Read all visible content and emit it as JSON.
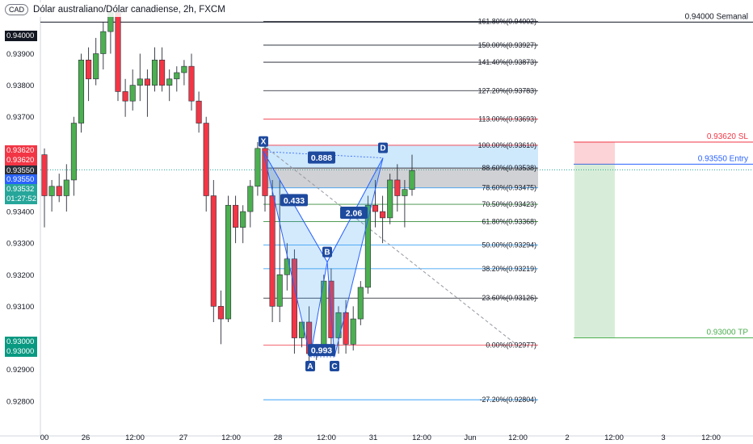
{
  "header": {
    "currency_badge": "CAD",
    "title": "Dólar australiano/Dólar canadiense, 2h, FXCM"
  },
  "price_axis": {
    "ticks": [
      "0.93900",
      "0.93800",
      "0.93700",
      "0.93400",
      "0.93300",
      "0.93200",
      "0.93100",
      "0.92900",
      "0.92800"
    ],
    "tags": [
      {
        "text": "0.94000",
        "bg": "#131722"
      },
      {
        "text": "0.93620",
        "bg": "#f23645"
      },
      {
        "text": "0.93620",
        "bg": "#f23645"
      },
      {
        "text": "0.93550",
        "bg": "#2a2e39"
      },
      {
        "text": "0.93550",
        "bg": "#2962ff"
      },
      {
        "text": "0.93532",
        "bg": "#26a69a"
      },
      {
        "text": "01:27:52",
        "bg": "#26a69a"
      },
      {
        "text": "0.93000",
        "bg": "#089981"
      },
      {
        "text": "0.93000",
        "bg": "#089981"
      }
    ]
  },
  "time_axis": {
    "labels": [
      "00",
      "26",
      "12:00",
      "27",
      "12:00",
      "28",
      "12:00",
      "31",
      "12:00",
      "Jun",
      "12:00",
      "2",
      "12:00",
      "3",
      "12:00"
    ]
  },
  "fib_levels": [
    {
      "label": "161.80%(0.94002)",
      "price": 0.94002,
      "color": "#131722"
    },
    {
      "label": "150.00%(0.93927)",
      "price": 0.93927,
      "color": "#131722"
    },
    {
      "label": "141.40%(0.93873)",
      "price": 0.93873,
      "color": "#131722"
    },
    {
      "label": "127.20%(0.93783)",
      "price": 0.93783,
      "color": "#131722"
    },
    {
      "label": "113.00%(0.93693)",
      "price": 0.93693,
      "color": "#f23645"
    },
    {
      "label": "100.00%(0.93610)",
      "price": 0.9361,
      "color": "#f23645"
    },
    {
      "label": "88.60%(0.93538)",
      "price": 0.93538,
      "color": "#131722"
    },
    {
      "label": "78.60%(0.93475)",
      "price": 0.93475,
      "color": "#2196f3"
    },
    {
      "label": "70.50%(0.93423)",
      "price": 0.93423,
      "color": "#388e3c"
    },
    {
      "label": "61.80%(0.93368)",
      "price": 0.93368,
      "color": "#388e3c"
    },
    {
      "label": "50.00%(0.93294)",
      "price": 0.93294,
      "color": "#2196f3"
    },
    {
      "label": "38.20%(0.93219)",
      "price": 0.93219,
      "color": "#2196f3"
    },
    {
      "label": "23.60%(0.93126)",
      "price": 0.93126,
      "color": "#131722"
    },
    {
      "label": "0.00%(0.92977)",
      "price": 0.92977,
      "color": "#f23645"
    },
    {
      "label": "-27.20%(0.92804)",
      "price": 0.92804,
      "color": "#2196f3"
    }
  ],
  "horizontal_labels": [
    {
      "text": "0.94000 Semanal",
      "price": 0.94,
      "color": "#131722"
    },
    {
      "text": "0.93620 SL",
      "price": 0.9362,
      "color": "#f23645"
    },
    {
      "text": "0.93550 Entry",
      "price": 0.9355,
      "color": "#2962ff"
    },
    {
      "text": "0.93000 TP",
      "price": 0.93,
      "color": "#4caf50"
    }
  ],
  "pattern": {
    "points": [
      {
        "name": "X",
        "price": 0.9359
      },
      {
        "name": "A",
        "price": 0.9294
      },
      {
        "name": "B",
        "price": 0.9324
      },
      {
        "name": "C",
        "price": 0.9294
      },
      {
        "name": "D",
        "price": 0.9357
      }
    ],
    "ratios": [
      "0.888",
      "0.433",
      "2.06",
      "0.993"
    ]
  },
  "chart_data": {
    "type": "candlestick",
    "title": "Dólar australiano/Dólar canadiense, 2h, FXCM",
    "ylim": [
      0.92715,
      0.9407
    ],
    "candles": [
      [
        0.9358,
        0.936,
        0.9335,
        0.9345
      ],
      [
        0.9345,
        0.935,
        0.934,
        0.9348
      ],
      [
        0.9348,
        0.9352,
        0.9343,
        0.9345
      ],
      [
        0.9345,
        0.9355,
        0.934,
        0.935
      ],
      [
        0.935,
        0.937,
        0.9345,
        0.9368
      ],
      [
        0.9368,
        0.939,
        0.9365,
        0.9388
      ],
      [
        0.9388,
        0.9392,
        0.9375,
        0.9382
      ],
      [
        0.9382,
        0.9395,
        0.938,
        0.939
      ],
      [
        0.939,
        0.94,
        0.9385,
        0.9397
      ],
      [
        0.9397,
        0.9405,
        0.939,
        0.9403
      ],
      [
        0.9403,
        0.9405,
        0.9375,
        0.9378
      ],
      [
        0.9378,
        0.9382,
        0.937,
        0.9375
      ],
      [
        0.9375,
        0.9385,
        0.9372,
        0.938
      ],
      [
        0.938,
        0.939,
        0.9375,
        0.9382
      ],
      [
        0.9382,
        0.9385,
        0.937,
        0.938
      ],
      [
        0.938,
        0.9392,
        0.9378,
        0.9388
      ],
      [
        0.9388,
        0.9392,
        0.9378,
        0.938
      ],
      [
        0.938,
        0.9385,
        0.9375,
        0.9382
      ],
      [
        0.9382,
        0.9386,
        0.9378,
        0.9384
      ],
      [
        0.9384,
        0.9388,
        0.938,
        0.9386
      ],
      [
        0.9386,
        0.939,
        0.9372,
        0.9375
      ],
      [
        0.9375,
        0.9378,
        0.9365,
        0.9368
      ],
      [
        0.9368,
        0.937,
        0.934,
        0.9345
      ],
      [
        0.9345,
        0.935,
        0.9305,
        0.931
      ],
      [
        0.931,
        0.9315,
        0.9298,
        0.9306
      ],
      [
        0.9306,
        0.9345,
        0.9305,
        0.9342
      ],
      [
        0.9342,
        0.9345,
        0.933,
        0.9335
      ],
      [
        0.9335,
        0.9342,
        0.933,
        0.934
      ],
      [
        0.934,
        0.935,
        0.9335,
        0.9348
      ],
      [
        0.9348,
        0.9362,
        0.9345,
        0.936
      ],
      [
        0.936,
        0.9362,
        0.934,
        0.9345
      ],
      [
        0.9345,
        0.935,
        0.9305,
        0.931
      ],
      [
        0.931,
        0.935,
        0.9305,
        0.932
      ],
      [
        0.932,
        0.933,
        0.9315,
        0.9325
      ],
      [
        0.9325,
        0.9328,
        0.9295,
        0.93
      ],
      [
        0.93,
        0.9305,
        0.9297,
        0.9305
      ],
      [
        0.9305,
        0.931,
        0.929,
        0.9295
      ],
      [
        0.9295,
        0.9298,
        0.9293,
        0.9297
      ],
      [
        0.9297,
        0.932,
        0.9295,
        0.9318
      ],
      [
        0.9318,
        0.9322,
        0.9298,
        0.93
      ],
      [
        0.93,
        0.931,
        0.9295,
        0.9308
      ],
      [
        0.9308,
        0.9312,
        0.9295,
        0.9298
      ],
      [
        0.9298,
        0.931,
        0.9296,
        0.9306
      ],
      [
        0.9306,
        0.9318,
        0.9304,
        0.9316
      ],
      [
        0.9316,
        0.9345,
        0.9314,
        0.9342
      ],
      [
        0.9342,
        0.935,
        0.9335,
        0.934
      ],
      [
        0.934,
        0.9345,
        0.933,
        0.9338
      ],
      [
        0.9338,
        0.9352,
        0.9336,
        0.935
      ],
      [
        0.935,
        0.9355,
        0.934,
        0.9345
      ],
      [
        0.9345,
        0.935,
        0.9335,
        0.9347
      ],
      [
        0.9347,
        0.9358,
        0.9345,
        0.9353
      ]
    ]
  }
}
